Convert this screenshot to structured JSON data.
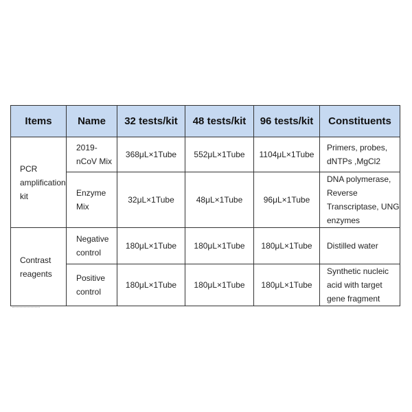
{
  "table": {
    "headers": [
      "Items",
      "Name",
      "32 tests/kit",
      "48 tests/kit",
      "96 tests/kit",
      "Constituents"
    ],
    "header_color": "#c6d9f1",
    "groups": [
      {
        "item": "PCR amplification kit",
        "rows": [
          {
            "name": "2019-nCoV Mix",
            "t32": "368μL×1Tube",
            "t48": "552μL×1Tube",
            "t96": "1104μL×1Tube",
            "constituents": "Primers, probes, dNTPs ,MgCl2"
          },
          {
            "name": "Enzyme Mix",
            "t32": "32μL×1Tube",
            "t48": "48μL×1Tube",
            "t96": "96μL×1Tube",
            "constituents": "DNA polymerase, Reverse Transcriptase, UNG enzymes"
          }
        ]
      },
      {
        "item": "Contrast reagents",
        "rows": [
          {
            "name": "Negative control",
            "t32": "180μL×1Tube",
            "t48": "180μL×1Tube",
            "t96": "180μL×1Tube",
            "constituents": "Distilled water"
          },
          {
            "name": "Positive control",
            "t32": "180μL×1Tube",
            "t48": "180μL×1Tube",
            "t96": "180μL×1Tube",
            "constituents": "Synthetic nucleic acid with target gene fragment"
          }
        ]
      }
    ]
  }
}
